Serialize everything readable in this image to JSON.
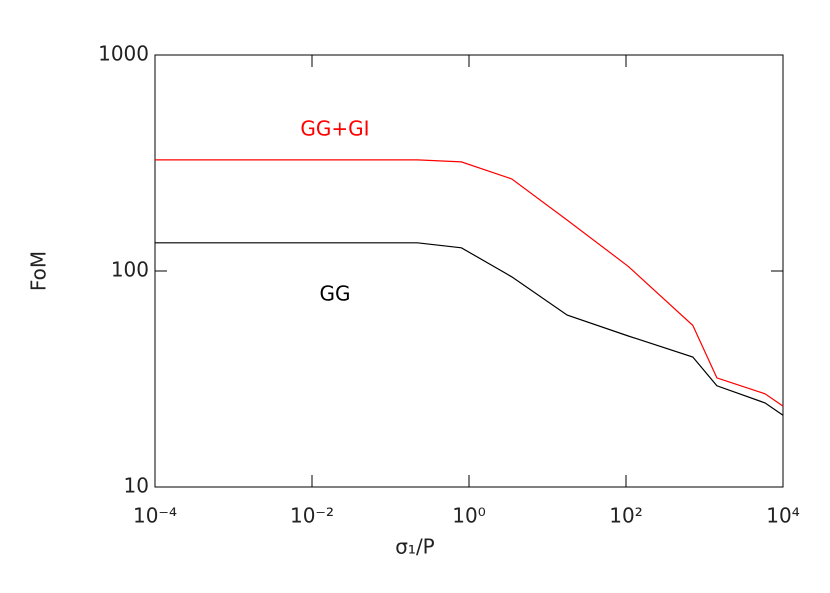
{
  "chart_data": {
    "type": "line",
    "x_label": "σ₁/P",
    "y_label": "FoM",
    "x": [
      0.0001,
      0.22,
      0.8,
      3.5,
      17.8,
      107,
      710,
      1440,
      5900,
      10000
    ],
    "series": [
      {
        "name": "GG+GI",
        "color": "#ff0000",
        "values": [
          327,
          327,
          320,
          267,
          172,
          105,
          56,
          32,
          27,
          23.7
        ]
      },
      {
        "name": "GG",
        "color": "#000000",
        "values": [
          135,
          135,
          128,
          94,
          62.5,
          50,
          40,
          29.4,
          24.5,
          21.5
        ]
      }
    ],
    "xlim": [
      0.0001,
      10000
    ],
    "xticks": [
      {
        "value": 0.0001,
        "label": "10⁻⁴"
      },
      {
        "value": 0.01,
        "label": "10⁻²"
      },
      {
        "value": 1,
        "label": "10⁰"
      },
      {
        "value": 100,
        "label": "10²"
      },
      {
        "value": 10000,
        "label": "10⁴"
      }
    ],
    "ylim": [
      10,
      1000
    ],
    "yticks": [
      10,
      100,
      1000
    ],
    "x_log": true,
    "y_log": true
  }
}
